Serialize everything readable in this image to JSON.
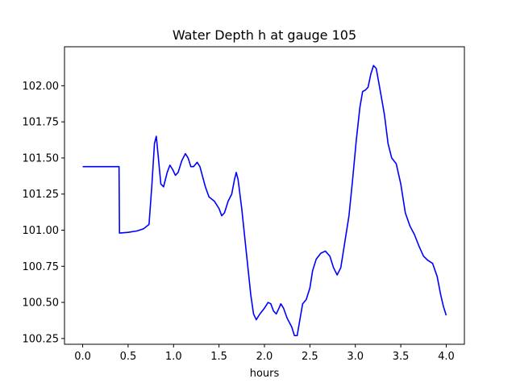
{
  "chart_data": {
    "type": "line",
    "title": "Water Depth h at gauge 105",
    "xlabel": "hours",
    "ylabel": "",
    "xlim": [
      -0.2,
      4.2
    ],
    "ylim": [
      100.21,
      102.27
    ],
    "x_ticks": [
      0.0,
      0.5,
      1.0,
      1.5,
      2.0,
      2.5,
      3.0,
      3.5,
      4.0
    ],
    "x_tick_labels": [
      "0.0",
      "0.5",
      "1.0",
      "1.5",
      "2.0",
      "2.5",
      "3.0",
      "3.5",
      "4.0"
    ],
    "y_ticks": [
      100.25,
      100.5,
      100.75,
      101.0,
      101.25,
      101.5,
      101.75,
      102.0
    ],
    "y_tick_labels": [
      "100.25",
      "100.50",
      "100.75",
      "101.00",
      "101.25",
      "101.50",
      "101.75",
      "102.00"
    ],
    "grid": false,
    "series": [
      {
        "color": "#0000ff",
        "points": [
          [
            0.0,
            101.44
          ],
          [
            0.1,
            101.44
          ],
          [
            0.2,
            101.44
          ],
          [
            0.3,
            101.44
          ],
          [
            0.4,
            101.44
          ],
          [
            0.405,
            100.98
          ],
          [
            0.5,
            100.985
          ],
          [
            0.6,
            100.995
          ],
          [
            0.67,
            101.01
          ],
          [
            0.73,
            101.04
          ],
          [
            0.76,
            101.3
          ],
          [
            0.79,
            101.6
          ],
          [
            0.81,
            101.65
          ],
          [
            0.83,
            101.52
          ],
          [
            0.86,
            101.32
          ],
          [
            0.89,
            101.3
          ],
          [
            0.93,
            101.4
          ],
          [
            0.96,
            101.45
          ],
          [
            0.99,
            101.42
          ],
          [
            1.02,
            101.38
          ],
          [
            1.05,
            101.4
          ],
          [
            1.09,
            101.48
          ],
          [
            1.13,
            101.53
          ],
          [
            1.16,
            101.5
          ],
          [
            1.19,
            101.44
          ],
          [
            1.22,
            101.44
          ],
          [
            1.26,
            101.47
          ],
          [
            1.29,
            101.44
          ],
          [
            1.32,
            101.37
          ],
          [
            1.35,
            101.3
          ],
          [
            1.39,
            101.23
          ],
          [
            1.45,
            101.2
          ],
          [
            1.5,
            101.15
          ],
          [
            1.53,
            101.1
          ],
          [
            1.56,
            101.12
          ],
          [
            1.6,
            101.2
          ],
          [
            1.64,
            101.25
          ],
          [
            1.67,
            101.35
          ],
          [
            1.69,
            101.4
          ],
          [
            1.71,
            101.35
          ],
          [
            1.75,
            101.15
          ],
          [
            1.8,
            100.85
          ],
          [
            1.85,
            100.55
          ],
          [
            1.88,
            100.42
          ],
          [
            1.91,
            100.38
          ],
          [
            1.95,
            100.42
          ],
          [
            2.0,
            100.46
          ],
          [
            2.04,
            100.5
          ],
          [
            2.07,
            100.49
          ],
          [
            2.1,
            100.44
          ],
          [
            2.13,
            100.42
          ],
          [
            2.16,
            100.46
          ],
          [
            2.18,
            100.49
          ],
          [
            2.21,
            100.46
          ],
          [
            2.25,
            100.39
          ],
          [
            2.3,
            100.33
          ],
          [
            2.33,
            100.27
          ],
          [
            2.36,
            100.27
          ],
          [
            2.39,
            100.38
          ],
          [
            2.42,
            100.49
          ],
          [
            2.46,
            100.52
          ],
          [
            2.5,
            100.6
          ],
          [
            2.53,
            100.72
          ],
          [
            2.57,
            100.8
          ],
          [
            2.62,
            100.84
          ],
          [
            2.67,
            100.855
          ],
          [
            2.72,
            100.82
          ],
          [
            2.76,
            100.74
          ],
          [
            2.8,
            100.69
          ],
          [
            2.84,
            100.74
          ],
          [
            2.88,
            100.9
          ],
          [
            2.93,
            101.1
          ],
          [
            2.97,
            101.35
          ],
          [
            3.01,
            101.62
          ],
          [
            3.05,
            101.85
          ],
          [
            3.08,
            101.96
          ],
          [
            3.11,
            101.97
          ],
          [
            3.14,
            101.99
          ],
          [
            3.17,
            102.08
          ],
          [
            3.2,
            102.14
          ],
          [
            3.23,
            102.12
          ],
          [
            3.27,
            101.98
          ],
          [
            3.32,
            101.8
          ],
          [
            3.36,
            101.6
          ],
          [
            3.4,
            101.5
          ],
          [
            3.45,
            101.46
          ],
          [
            3.5,
            101.32
          ],
          [
            3.55,
            101.12
          ],
          [
            3.6,
            101.03
          ],
          [
            3.65,
            100.97
          ],
          [
            3.7,
            100.89
          ],
          [
            3.75,
            100.82
          ],
          [
            3.8,
            100.79
          ],
          [
            3.85,
            100.77
          ],
          [
            3.9,
            100.68
          ],
          [
            3.94,
            100.55
          ],
          [
            3.97,
            100.47
          ],
          [
            4.0,
            100.41
          ]
        ]
      }
    ]
  }
}
